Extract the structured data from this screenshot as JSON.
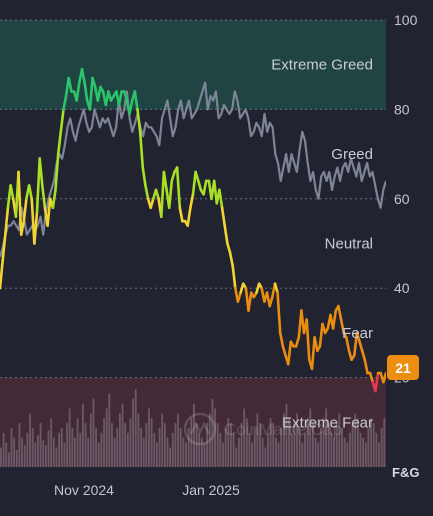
{
  "chart_data": {
    "type": "line",
    "title": "",
    "xlabel": "",
    "ylabel": "F&G",
    "ylim": [
      0,
      100
    ],
    "y_ticks": [
      20,
      40,
      60,
      80,
      100
    ],
    "x_tick_labels": [
      "Nov 2024",
      "Jan 2025"
    ],
    "zones": [
      {
        "name": "Extreme Greed",
        "from": 80,
        "to": 100,
        "color": "#1f4a44"
      },
      {
        "name": "Greed",
        "from": 60,
        "to": 80,
        "color": ""
      },
      {
        "name": "Neutral",
        "from": 40,
        "to": 60,
        "color": ""
      },
      {
        "name": "Fear",
        "from": 20,
        "to": 40,
        "color": ""
      },
      {
        "name": "Extreme Fear",
        "from": 0,
        "to": 20,
        "color": "#4a2c38"
      }
    ],
    "current_value": "21",
    "watermark": "CoinMarketCap",
    "series": [
      {
        "role": "index",
        "values": [
          40,
          46,
          52,
          58,
          63,
          60,
          56,
          66,
          52,
          55,
          60,
          63,
          60,
          50,
          57,
          69,
          63,
          58,
          54,
          60,
          58,
          62,
          70,
          75,
          80,
          83,
          87,
          84,
          84,
          82,
          86,
          89,
          86,
          82,
          80,
          87,
          85,
          82,
          85,
          84,
          81,
          84,
          82,
          83,
          84,
          81,
          84,
          84,
          82,
          79,
          82,
          84,
          80,
          75,
          67,
          63,
          60,
          58,
          60,
          62,
          60,
          56,
          66,
          62,
          58,
          64,
          66,
          67,
          58,
          55,
          55,
          54,
          58,
          61,
          66,
          64,
          62,
          61,
          64,
          64,
          60,
          64,
          59,
          62,
          58,
          54,
          50,
          48,
          45,
          40,
          37,
          39,
          41,
          40,
          35,
          39,
          38,
          39,
          41,
          40,
          37,
          39,
          36,
          38,
          41,
          39,
          30,
          27,
          25,
          23,
          28,
          27,
          27,
          29,
          35,
          30,
          33,
          24,
          22,
          29,
          26,
          27,
          32,
          30,
          31,
          34,
          31,
          35,
          36,
          33,
          30,
          29,
          26,
          24,
          25,
          30,
          28,
          26,
          24,
          21,
          21,
          19,
          17,
          21,
          21,
          19,
          21
        ]
      },
      {
        "role": "comparison",
        "values": [
          47,
          49,
          52,
          54,
          54,
          55,
          54,
          53,
          58,
          55,
          52,
          53,
          54,
          53,
          54,
          56,
          52,
          57,
          60,
          62,
          64,
          68,
          70,
          69,
          72,
          76,
          78,
          75,
          73,
          76,
          78,
          80,
          77,
          75,
          76,
          80,
          78,
          76,
          78,
          77,
          78,
          76,
          74,
          76,
          82,
          78,
          80,
          84,
          78,
          75,
          77,
          79,
          76,
          74,
          77,
          76,
          76,
          75,
          74,
          72,
          78,
          80,
          82,
          78,
          74,
          76,
          80,
          82,
          78,
          80,
          82,
          78,
          79,
          80,
          82,
          84,
          86,
          80,
          83,
          82,
          84,
          78,
          79,
          81,
          80,
          79,
          80,
          84,
          82,
          78,
          79,
          80,
          78,
          74,
          75,
          77,
          76,
          74,
          79,
          75,
          77,
          76,
          70,
          68,
          64,
          67,
          70,
          66,
          70,
          68,
          66,
          71,
          75,
          73,
          68,
          64,
          66,
          62,
          60,
          65,
          66,
          64,
          66,
          62,
          65,
          67,
          64,
          67,
          68,
          66,
          69,
          67,
          65,
          68,
          64,
          66,
          68,
          65,
          66,
          63,
          60,
          58,
          62,
          64
        ]
      }
    ],
    "volume": [
      8,
      14,
      10,
      6,
      16,
      12,
      7,
      18,
      12,
      9,
      14,
      22,
      16,
      10,
      13,
      18,
      11,
      9,
      15,
      20,
      12,
      8,
      14,
      16,
      10,
      18,
      24,
      16,
      12,
      20,
      14,
      26,
      18,
      12,
      22,
      28,
      16,
      10,
      14,
      20,
      24,
      30,
      18,
      12,
      16,
      22,
      26,
      18,
      14,
      20,
      28,
      32,
      22,
      16,
      12,
      18,
      24,
      20,
      14,
      10,
      16,
      22,
      18,
      12,
      8,
      14,
      18,
      22,
      16,
      12,
      10,
      16,
      20,
      26,
      18,
      14,
      12,
      10,
      18,
      22,
      28,
      24,
      18,
      14,
      10,
      16,
      20,
      18,
      14,
      8,
      12,
      18,
      24,
      20,
      14,
      10,
      16,
      22,
      18,
      12,
      8,
      14,
      20,
      18,
      12,
      10,
      16,
      22,
      26,
      20,
      14,
      18,
      22,
      16,
      10,
      14,
      20,
      24,
      18,
      12,
      10,
      16,
      20,
      24,
      18,
      14,
      12,
      18,
      22,
      16,
      12,
      10,
      14,
      18,
      22,
      20,
      14,
      12,
      10,
      16,
      20,
      18,
      14,
      10,
      16,
      20
    ]
  }
}
